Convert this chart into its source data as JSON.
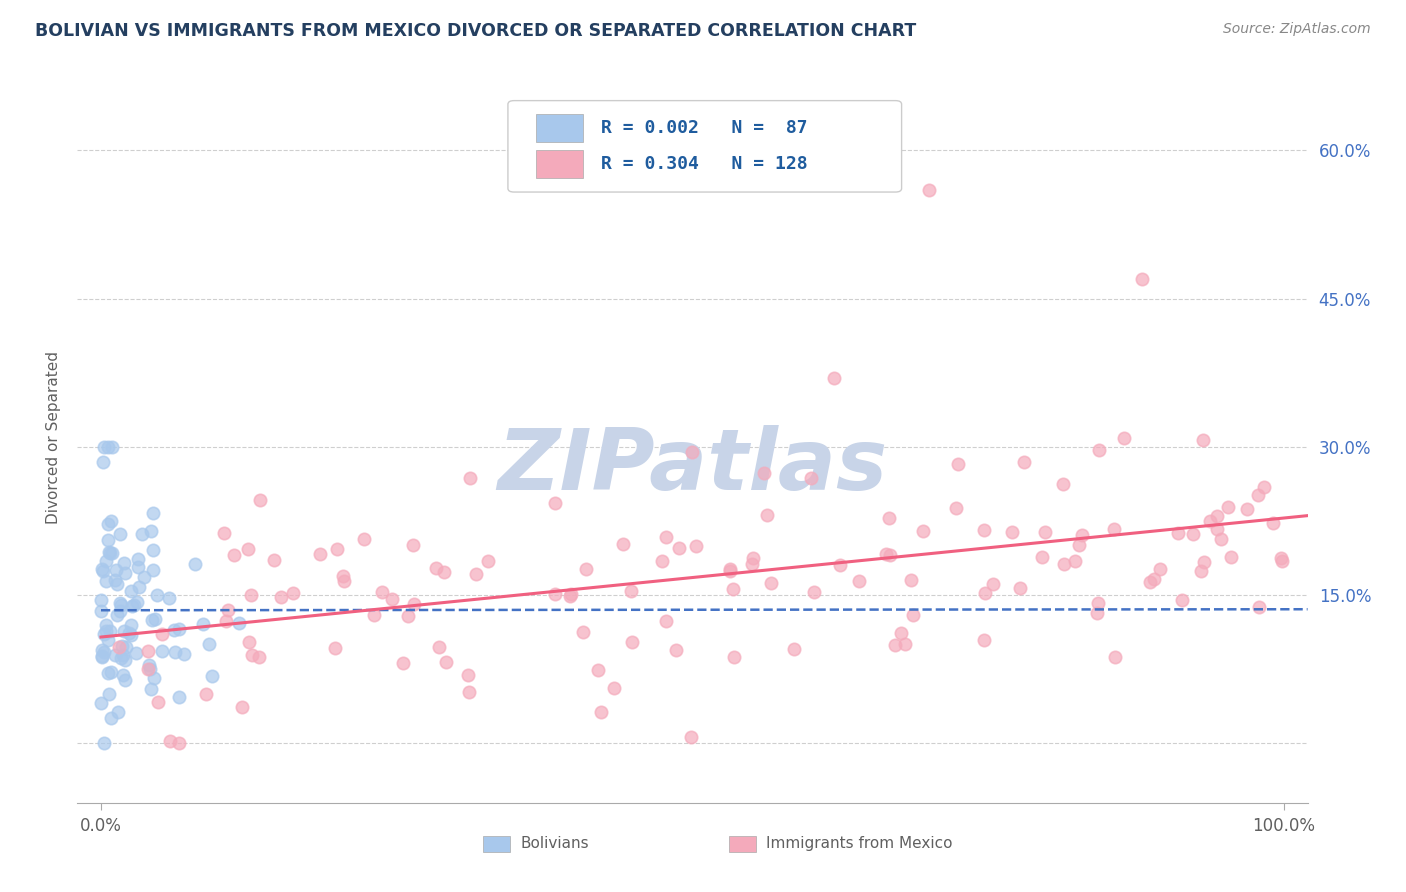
{
  "title": "BOLIVIAN VS IMMIGRANTS FROM MEXICO DIVORCED OR SEPARATED CORRELATION CHART",
  "source": "Source: ZipAtlas.com",
  "ylabel": "Divorced or Separated",
  "xlim": [
    -0.02,
    1.02
  ],
  "ylim": [
    -0.06,
    0.68
  ],
  "yticks": [
    0.0,
    0.15,
    0.3,
    0.45,
    0.6
  ],
  "ytick_labels": [
    "",
    "15.0%",
    "30.0%",
    "45.0%",
    "60.0%"
  ],
  "xticks": [
    0.0,
    1.0
  ],
  "xtick_labels": [
    "0.0%",
    "100.0%"
  ],
  "bottom_legend_labels": [
    "Bolivians",
    "Immigrants from Mexico"
  ],
  "r_blue": 0.002,
  "n_blue": 87,
  "r_pink": 0.304,
  "n_pink": 128,
  "blue_color": "#A8C8EC",
  "pink_color": "#F4AABB",
  "blue_line_color": "#4472C4",
  "pink_line_color": "#F06080",
  "title_color": "#243F60",
  "axis_label_color": "#606060",
  "tick_color": "#4472C4",
  "watermark_color": "#C8D4E8",
  "background_color": "#FFFFFF",
  "grid_color": "#BBBBBB",
  "legend_text_color": "#1F5C9E",
  "seed": 99
}
